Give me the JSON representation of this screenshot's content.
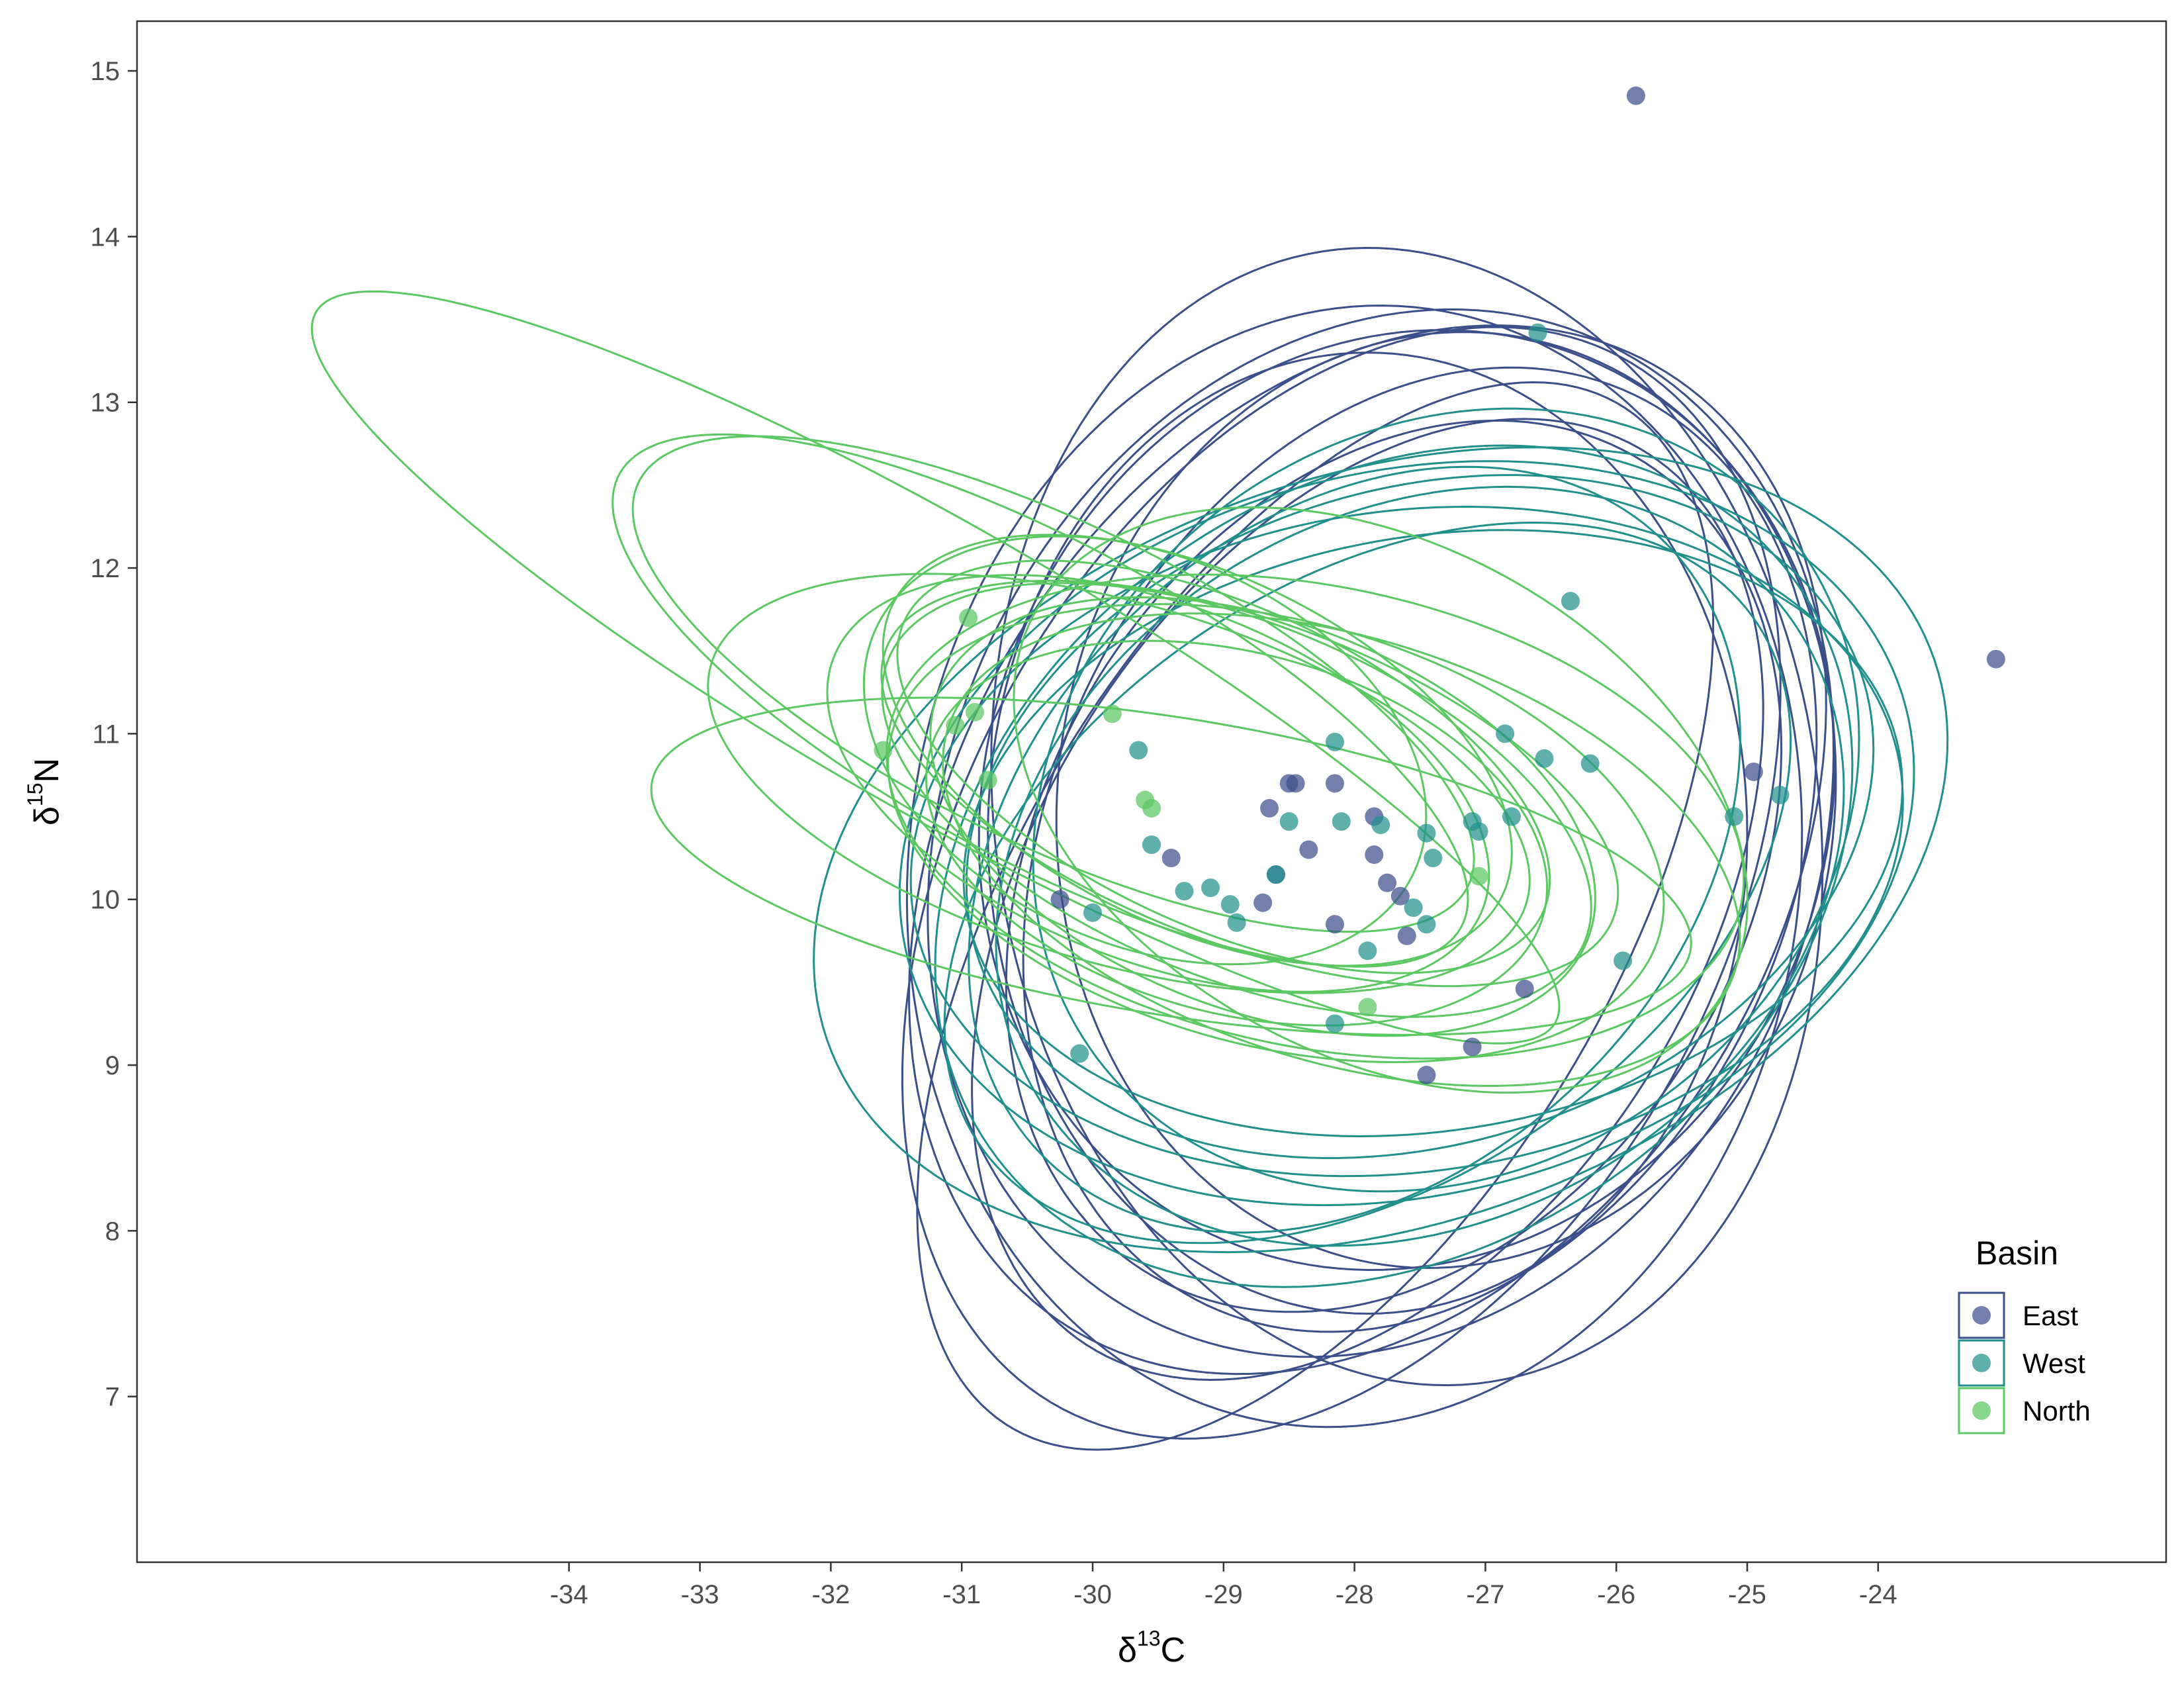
{
  "chart_data": {
    "type": "scatter",
    "title": "",
    "xlabel": {
      "main": "δ",
      "sup": "13",
      "tail": "C"
    },
    "ylabel": {
      "main": "δ",
      "sup": "15",
      "tail": "N"
    },
    "xlim": [
      -37.3,
      -21.8
    ],
    "ylim": [
      6.0,
      15.3
    ],
    "xticks": [
      -34,
      -33,
      -32,
      -31,
      -30,
      -29,
      -28,
      -27,
      -26,
      -25,
      -24
    ],
    "yticks": [
      7,
      8,
      9,
      10,
      11,
      12,
      13,
      14,
      15
    ],
    "grid": false,
    "legend": {
      "title": "Basin",
      "placement": "bottom-right",
      "entries": [
        "East",
        "West",
        "North"
      ]
    },
    "colors": {
      "East": "#3b4f8a",
      "West": "#21908c",
      "North": "#5bc862"
    },
    "series": [
      {
        "name": "East",
        "points": [
          [
            -25.85,
            14.85
          ],
          [
            -23.1,
            11.45
          ],
          [
            -28.65,
            10.55
          ],
          [
            -28.5,
            10.7
          ],
          [
            -28.45,
            10.7
          ],
          [
            -28.15,
            10.7
          ],
          [
            -28.35,
            10.3
          ],
          [
            -29.4,
            10.25
          ],
          [
            -28.6,
            10.15
          ],
          [
            -28.7,
            9.98
          ],
          [
            -28.15,
            9.85
          ],
          [
            -27.85,
            10.5
          ],
          [
            -27.85,
            10.27
          ],
          [
            -27.75,
            10.1
          ],
          [
            -27.65,
            10.02
          ],
          [
            -27.6,
            9.78
          ],
          [
            -26.7,
            9.46
          ],
          [
            -27.1,
            9.11
          ],
          [
            -27.45,
            8.94
          ],
          [
            -30.25,
            10.0
          ],
          [
            -24.95,
            10.77
          ]
        ]
      },
      {
        "name": "West",
        "points": [
          [
            -26.6,
            13.42
          ],
          [
            -26.35,
            11.8
          ],
          [
            -26.85,
            11.0
          ],
          [
            -26.55,
            10.85
          ],
          [
            -26.2,
            10.82
          ],
          [
            -28.15,
            10.95
          ],
          [
            -29.65,
            10.9
          ],
          [
            -28.5,
            10.47
          ],
          [
            -28.1,
            10.47
          ],
          [
            -27.8,
            10.45
          ],
          [
            -27.45,
            10.4
          ],
          [
            -27.1,
            10.47
          ],
          [
            -27.05,
            10.41
          ],
          [
            -26.8,
            10.5
          ],
          [
            -27.4,
            10.25
          ],
          [
            -29.55,
            10.33
          ],
          [
            -28.6,
            10.15
          ],
          [
            -29.3,
            10.05
          ],
          [
            -29.1,
            10.07
          ],
          [
            -28.95,
            9.97
          ],
          [
            -28.9,
            9.86
          ],
          [
            -27.55,
            9.95
          ],
          [
            -27.45,
            9.85
          ],
          [
            -30.0,
            9.92
          ],
          [
            -27.9,
            9.69
          ],
          [
            -28.15,
            9.25
          ],
          [
            -30.1,
            9.07
          ],
          [
            -25.95,
            9.63
          ],
          [
            -25.1,
            10.5
          ],
          [
            -24.75,
            10.63
          ]
        ]
      },
      {
        "name": "North",
        "points": [
          [
            -30.95,
            11.7
          ],
          [
            -30.9,
            11.13
          ],
          [
            -31.05,
            11.05
          ],
          [
            -31.6,
            10.9
          ],
          [
            -30.8,
            10.72
          ],
          [
            -29.85,
            11.12
          ],
          [
            -29.6,
            10.6
          ],
          [
            -29.55,
            10.55
          ],
          [
            -27.05,
            10.14
          ],
          [
            -27.9,
            9.35
          ]
        ]
      }
    ],
    "ellipses": [
      {
        "series": "East",
        "cx": -28.0,
        "cy": 10.2,
        "rx": 3.5,
        "ry": 3.3,
        "angle": 40
      },
      {
        "series": "East",
        "cx": -27.9,
        "cy": 10.3,
        "rx": 3.8,
        "ry": 2.8,
        "angle": 35
      },
      {
        "series": "East",
        "cx": -27.8,
        "cy": 10.4,
        "rx": 3.6,
        "ry": 3.0,
        "angle": 30
      },
      {
        "series": "East",
        "cx": -28.1,
        "cy": 10.1,
        "rx": 3.9,
        "ry": 2.7,
        "angle": 45
      },
      {
        "series": "East",
        "cx": -27.6,
        "cy": 10.5,
        "rx": 3.1,
        "ry": 3.5,
        "angle": 25
      },
      {
        "series": "East",
        "cx": -27.5,
        "cy": 10.3,
        "rx": 3.3,
        "ry": 2.6,
        "angle": 40
      },
      {
        "series": "East",
        "cx": -27.7,
        "cy": 10.2,
        "rx": 3.2,
        "ry": 2.4,
        "angle": 35
      },
      {
        "series": "East",
        "cx": -27.9,
        "cy": 10.4,
        "rx": 2.9,
        "ry": 2.9,
        "angle": 30
      },
      {
        "series": "East",
        "cx": -27.3,
        "cy": 10.6,
        "rx": 3.0,
        "ry": 2.8,
        "angle": 20
      },
      {
        "series": "East",
        "cx": -28.3,
        "cy": 9.9,
        "rx": 3.9,
        "ry": 2.1,
        "angle": 48
      },
      {
        "series": "East",
        "cx": -27.6,
        "cy": 10.6,
        "rx": 3.3,
        "ry": 2.8,
        "angle": 15
      },
      {
        "series": "East",
        "cx": -27.9,
        "cy": 10.0,
        "rx": 3.5,
        "ry": 2.3,
        "angle": 42
      },
      {
        "series": "West",
        "cx": -27.8,
        "cy": 10.3,
        "rx": 4.4,
        "ry": 2.3,
        "angle": 12
      },
      {
        "series": "West",
        "cx": -27.6,
        "cy": 10.4,
        "rx": 3.9,
        "ry": 2.2,
        "angle": 8
      },
      {
        "series": "West",
        "cx": -27.7,
        "cy": 10.2,
        "rx": 3.6,
        "ry": 2.4,
        "angle": 18
      },
      {
        "series": "West",
        "cx": -27.5,
        "cy": 10.5,
        "rx": 3.5,
        "ry": 2.0,
        "angle": 10
      },
      {
        "series": "West",
        "cx": -27.6,
        "cy": 10.35,
        "rx": 3.8,
        "ry": 2.0,
        "angle": 5
      },
      {
        "series": "West",
        "cx": -27.3,
        "cy": 10.6,
        "rx": 3.2,
        "ry": 2.3,
        "angle": 14
      },
      {
        "series": "West",
        "cx": -27.9,
        "cy": 10.1,
        "rx": 3.4,
        "ry": 1.9,
        "angle": 22
      },
      {
        "series": "West",
        "cx": -27.4,
        "cy": 10.4,
        "rx": 3.6,
        "ry": 1.8,
        "angle": 6
      },
      {
        "series": "West",
        "cx": -28.0,
        "cy": 10.3,
        "rx": 3.1,
        "ry": 2.1,
        "angle": 25
      },
      {
        "series": "West",
        "cx": -27.5,
        "cy": 10.2,
        "rx": 3.3,
        "ry": 2.2,
        "angle": 15
      },
      {
        "series": "North",
        "cx": -31.2,
        "cy": 11.4,
        "rx": 5.2,
        "ry": 0.9,
        "angle": -24
      },
      {
        "series": "North",
        "cx": -30.4,
        "cy": 11.2,
        "rx": 3.5,
        "ry": 1.0,
        "angle": -22
      },
      {
        "series": "North",
        "cx": -30.3,
        "cy": 11.3,
        "rx": 3.4,
        "ry": 1.0,
        "angle": -20
      },
      {
        "series": "North",
        "cx": -29.4,
        "cy": 10.2,
        "rx": 4.0,
        "ry": 0.9,
        "angle": -7
      },
      {
        "series": "North",
        "cx": -29.5,
        "cy": 10.7,
        "rx": 2.6,
        "ry": 1.1,
        "angle": -15
      },
      {
        "series": "North",
        "cx": -29.6,
        "cy": 10.9,
        "rx": 2.2,
        "ry": 1.2,
        "angle": -15
      },
      {
        "series": "North",
        "cx": -29.2,
        "cy": 10.9,
        "rx": 2.5,
        "ry": 1.1,
        "angle": -18
      },
      {
        "series": "North",
        "cx": -29.0,
        "cy": 10.8,
        "rx": 2.6,
        "ry": 1.0,
        "angle": -18
      },
      {
        "series": "North",
        "cx": -28.9,
        "cy": 10.6,
        "rx": 2.8,
        "ry": 1.1,
        "angle": -16
      },
      {
        "series": "North",
        "cx": -28.8,
        "cy": 10.7,
        "rx": 2.9,
        "ry": 1.0,
        "angle": -15
      },
      {
        "series": "North",
        "cx": -28.7,
        "cy": 10.5,
        "rx": 2.6,
        "ry": 1.2,
        "angle": -14
      },
      {
        "series": "North",
        "cx": -28.9,
        "cy": 10.4,
        "rx": 2.4,
        "ry": 1.1,
        "angle": -10
      },
      {
        "series": "North",
        "cx": -28.6,
        "cy": 10.4,
        "rx": 3.0,
        "ry": 1.3,
        "angle": -10
      },
      {
        "series": "North",
        "cx": -29.8,
        "cy": 10.7,
        "rx": 3.2,
        "ry": 1.1,
        "angle": -12
      },
      {
        "series": "North",
        "cx": -28.3,
        "cy": 10.5,
        "rx": 3.3,
        "ry": 1.4,
        "angle": -8
      },
      {
        "series": "North",
        "cx": -28.1,
        "cy": 10.3,
        "rx": 3.1,
        "ry": 1.3,
        "angle": -12
      },
      {
        "series": "North",
        "cx": -27.8,
        "cy": 10.6,
        "rx": 2.9,
        "ry": 1.6,
        "angle": -18
      }
    ]
  }
}
